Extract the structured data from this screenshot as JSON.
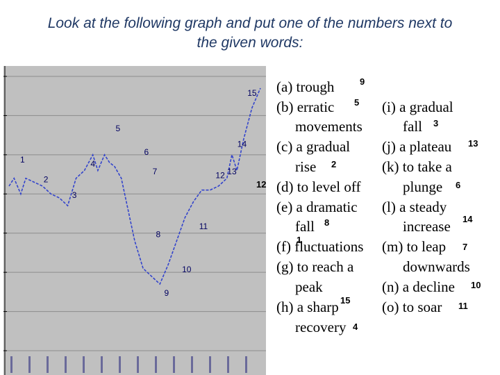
{
  "title_line1": "Look at the following graph and put one of the numbers next to",
  "title_line2": "the given words:",
  "chart_data": {
    "type": "line",
    "x": [
      0,
      0.3,
      0.7,
      1,
      1.5,
      2,
      2.5,
      3,
      3.5,
      4,
      4.5,
      5,
      5.3,
      5.7,
      6,
      6.3,
      6.7,
      7,
      7.5,
      8,
      8.5,
      9,
      9.5,
      10,
      10.5,
      11,
      11.5,
      12,
      12.5,
      13,
      13.3,
      13.6,
      14,
      14.5,
      15
    ],
    "y": [
      1,
      2,
      0,
      2,
      1.5,
      1,
      0,
      -0.5,
      -1.5,
      2,
      3,
      5,
      3,
      5,
      4,
      3.5,
      2,
      -1,
      -6,
      -9.5,
      -10.5,
      -11.5,
      -9,
      -6,
      -3,
      -1,
      0.5,
      0.5,
      1,
      2,
      5,
      3,
      7,
      11,
      13.5
    ],
    "markers": [
      {
        "label": "1",
        "x": 0.8,
        "y": 4
      },
      {
        "label": "2",
        "x": 2.2,
        "y": 1.5
      },
      {
        "label": "3",
        "x": 3.9,
        "y": -0.5
      },
      {
        "label": "4",
        "x": 5,
        "y": 3.5
      },
      {
        "label": "5",
        "x": 6.5,
        "y": 8
      },
      {
        "label": "6",
        "x": 8.2,
        "y": 5
      },
      {
        "label": "7",
        "x": 8.7,
        "y": 2.5
      },
      {
        "label": "8",
        "x": 8.9,
        "y": -5.5
      },
      {
        "label": "9",
        "x": 9.4,
        "y": -13
      },
      {
        "label": "10",
        "x": 10.6,
        "y": -10
      },
      {
        "label": "11",
        "x": 11.6,
        "y": -4.5
      },
      {
        "label": "12",
        "x": 12.6,
        "y": 2
      },
      {
        "label": "13",
        "x": 13.3,
        "y": 2.5
      },
      {
        "label": "14",
        "x": 13.9,
        "y": 6
      },
      {
        "label": "15",
        "x": 14.5,
        "y": 12.5
      }
    ],
    "ylim": [
      -20,
      15
    ],
    "xlim": [
      0,
      15
    ],
    "grid": true
  },
  "left_list": {
    "a": "(a) trough",
    "b": "(b) erratic",
    "b2": "movements",
    "c": "(c) a gradual",
    "c2": "rise",
    "d": "(d) to level off",
    "e": "(e) a dramatic",
    "e2": "fall",
    "f": "(f) fluctuations",
    "g": "(g) to reach a",
    "g2": "peak",
    "h": "(h) a sharp",
    "h2": "recovery"
  },
  "right_list": {
    "i": "(i) a gradual",
    "i2": "fall",
    "j": "(j) a plateau",
    "k": "(k) to take a",
    "k2": "plunge",
    "l": "(l) a steady",
    "l2": "increase",
    "m": "(m) to leap",
    "m2": "downwards",
    "n": "(n) a decline",
    "o": "(o) to soar"
  },
  "answers": {
    "a": "9",
    "b": "5",
    "c": "2",
    "d": "12",
    "e": "8",
    "f": "1",
    "h": "15",
    "h2": "4",
    "i": "3",
    "j": "13",
    "k": "6",
    "l": "14",
    "m": "7",
    "n": "10",
    "o": "11"
  }
}
